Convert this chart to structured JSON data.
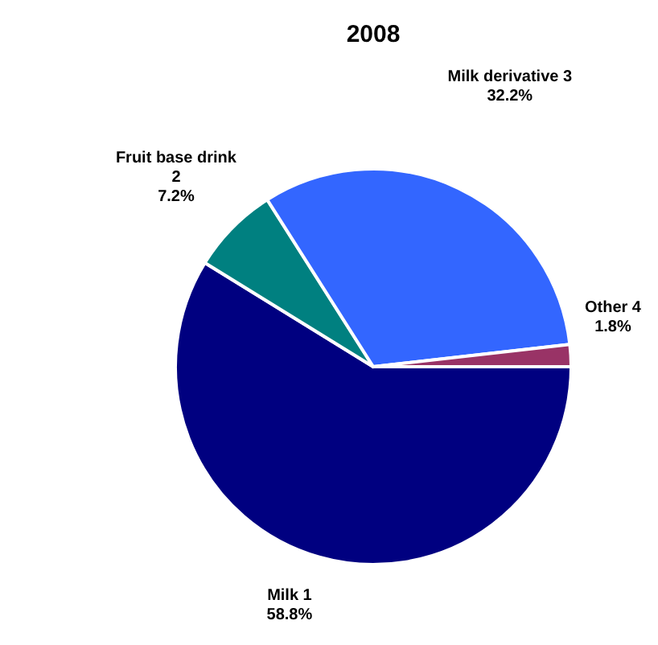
{
  "chart_data": {
    "type": "pie",
    "title": "2008",
    "categories": [
      "Milk 1",
      "Fruit base drink 2",
      "Milk derivative 3",
      "Other 4"
    ],
    "values": [
      58.8,
      7.2,
      32.2,
      1.8
    ],
    "colors": [
      "#000080",
      "#008080",
      "#3366ff",
      "#993366"
    ],
    "value_labels": [
      "58.8%",
      "7.2%",
      "32.2%",
      "1.8%"
    ]
  }
}
